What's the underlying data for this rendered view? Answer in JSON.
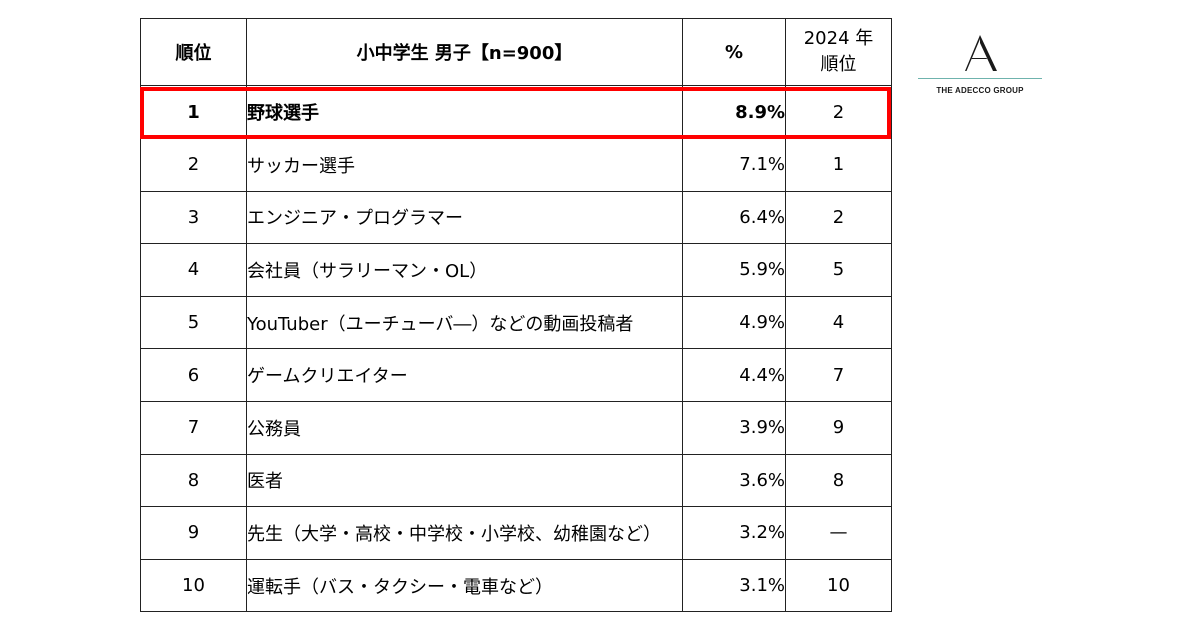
{
  "table": {
    "headers": {
      "rank": "順位",
      "job": "小中学生 男子【n=900】",
      "pct": "%",
      "prev_line1": "2024 年",
      "prev_line2": "順位"
    },
    "highlighted_rank": "1",
    "highlight_color": "#ff0000",
    "rows": [
      {
        "rank": "1",
        "job": "野球選手",
        "pct": "8.9%",
        "prev": "2"
      },
      {
        "rank": "2",
        "job": "サッカー選手",
        "pct": "7.1%",
        "prev": "1"
      },
      {
        "rank": "3",
        "job": "エンジニア・プログラマー",
        "pct": "6.4%",
        "prev": "2"
      },
      {
        "rank": "4",
        "job": "会社員（サラリーマン・OL）",
        "pct": "5.9%",
        "prev": "5"
      },
      {
        "rank": "5",
        "job": "YouTuber（ユーチューバ―）などの動画投稿者",
        "pct": "4.9%",
        "prev": "4"
      },
      {
        "rank": "6",
        "job": "ゲームクリエイター",
        "pct": "4.4%",
        "prev": "7"
      },
      {
        "rank": "7",
        "job": "公務員",
        "pct": "3.9%",
        "prev": "9"
      },
      {
        "rank": "8",
        "job": "医者",
        "pct": "3.6%",
        "prev": "8"
      },
      {
        "rank": "9",
        "job": "先生（大学・高校・中学校・小学校、幼稚園など）",
        "pct": "3.2%",
        "prev": "—"
      },
      {
        "rank": "10",
        "job": "運転手（バス・タクシー・電車など）",
        "pct": "3.1%",
        "prev": "10"
      }
    ]
  },
  "logo": {
    "text": "THE ADECCO GROUP",
    "icon": "adecco-a-logo-icon",
    "accent_color": "#6fb3ad"
  }
}
